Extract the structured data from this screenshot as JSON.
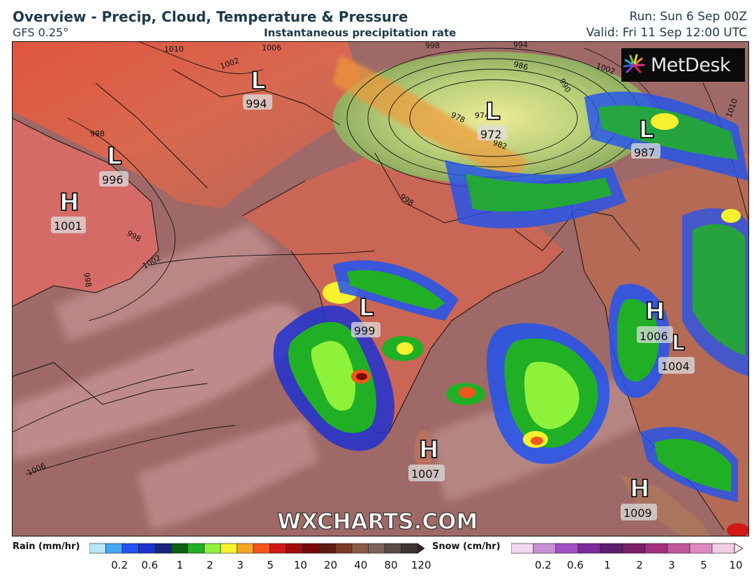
{
  "header": {
    "title": "Overview - Precip, Cloud, Temperature & Pressure",
    "model": "GFS 0.25°",
    "subtitle": "Instantaneous precipitation rate",
    "run": "Run: Sun 6 Sep 00Z",
    "valid": "Valid: Fri 11 Sep 12:00 UTC"
  },
  "brand": {
    "logo": "MetDesk",
    "watermark": "WXCHARTS.COM"
  },
  "pressure_centers": [
    {
      "type": "L",
      "value": "994"
    },
    {
      "type": "L",
      "value": "972"
    },
    {
      "type": "L",
      "value": "987"
    },
    {
      "type": "L",
      "value": "996"
    },
    {
      "type": "H",
      "value": "1001"
    },
    {
      "type": "L",
      "value": "999"
    },
    {
      "type": "H",
      "value": "1006"
    },
    {
      "type": "L",
      "value": "1004"
    },
    {
      "type": "H",
      "value": "1007"
    },
    {
      "type": "H",
      "value": "1009"
    }
  ],
  "isobar_labels": [
    "1006",
    "1002",
    "1010",
    "998",
    "994",
    "986",
    "990",
    "978",
    "974",
    "982",
    "998",
    "998",
    "1002",
    "998",
    "1010",
    "1002",
    "1006",
    "998"
  ],
  "legend": {
    "rain": {
      "label": "Rain (mm/hr)",
      "ticks": [
        "0.2",
        "0.6",
        "1",
        "2",
        "3",
        "5",
        "10",
        "20",
        "40",
        "80",
        "120"
      ],
      "colors": [
        "#b7e6f2",
        "#44a7f2",
        "#2153f0",
        "#1f31d0",
        "#172580",
        "#0a5f12",
        "#21b025",
        "#8ef23a",
        "#f7f02e",
        "#f5a623",
        "#f3561d",
        "#d11a17",
        "#a50d0d",
        "#7a0707",
        "#5c1a12",
        "#7a3a28",
        "#8e5a48",
        "#7a6356",
        "#5a4b44",
        "#3c3533"
      ]
    },
    "snow": {
      "label": "Snow (cm/hr)",
      "ticks": [
        "0.2",
        "0.6",
        "1",
        "2",
        "3",
        "5",
        "10"
      ],
      "colors": [
        "#f1d7ef",
        "#c88fd6",
        "#a24fc4",
        "#7c2a9c",
        "#5e1a6e",
        "#7a1f6a",
        "#a0327f",
        "#c2579c",
        "#dc8ac0",
        "#f3cbe4"
      ]
    }
  }
}
